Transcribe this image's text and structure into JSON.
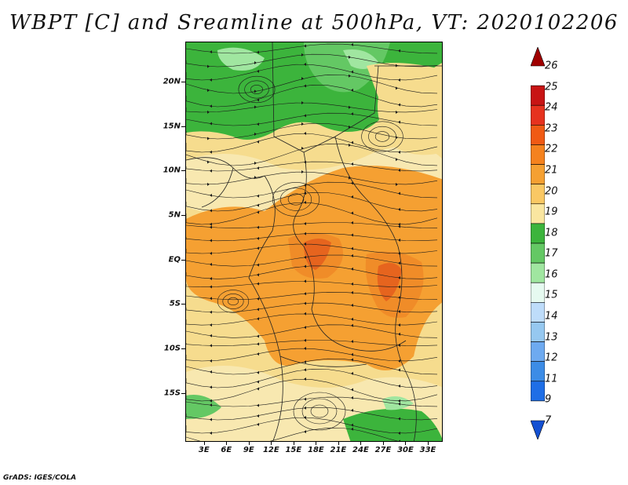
{
  "title": "WBPT [C] and Sreamline at 500hPa, VT: 2020102206",
  "credit": "GrADS: IGES/COLA",
  "axes": {
    "lat_labels": [
      "20N",
      "15N",
      "10N",
      "5N",
      "EQ",
      "5S",
      "10S",
      "15S"
    ],
    "lat_values": [
      20,
      15,
      10,
      5,
      0,
      -5,
      -10,
      -15
    ],
    "lon_labels": [
      "3E",
      "6E",
      "9E",
      "12E",
      "15E",
      "18E",
      "21E",
      "24E",
      "27E",
      "30E",
      "33E"
    ],
    "lon_values": [
      3,
      6,
      9,
      12,
      15,
      18,
      21,
      24,
      27,
      30,
      33
    ],
    "lon_range": [
      0.5,
      35
    ],
    "lat_range": [
      -20.5,
      24.5
    ]
  },
  "colorbar": {
    "labels": [
      "26",
      "25",
      "24",
      "23",
      "22",
      "21",
      "20",
      "19",
      "18",
      "17",
      "16",
      "15",
      "14",
      "13",
      "12",
      "11",
      "9",
      "7"
    ],
    "colors": [
      "#a00000",
      "#c81414",
      "#e6321e",
      "#f05a14",
      "#f5821e",
      "#f5a032",
      "#fac864",
      "#fae6a0",
      "#3cb43c",
      "#64c864",
      "#a0e6a0",
      "#e6faf0",
      "#bedcfa",
      "#96c8f0",
      "#6eaaf0",
      "#3c8ce6",
      "#1e6ee6",
      "#1450d2"
    ]
  },
  "map_regions": {
    "north_green": "#3cb43c",
    "north_light_green": "#a0e6a0",
    "tan": "#f6dc8e",
    "orange": "#f5a032",
    "dark_orange": "#f08c28",
    "red_orange": "#e6641e"
  }
}
